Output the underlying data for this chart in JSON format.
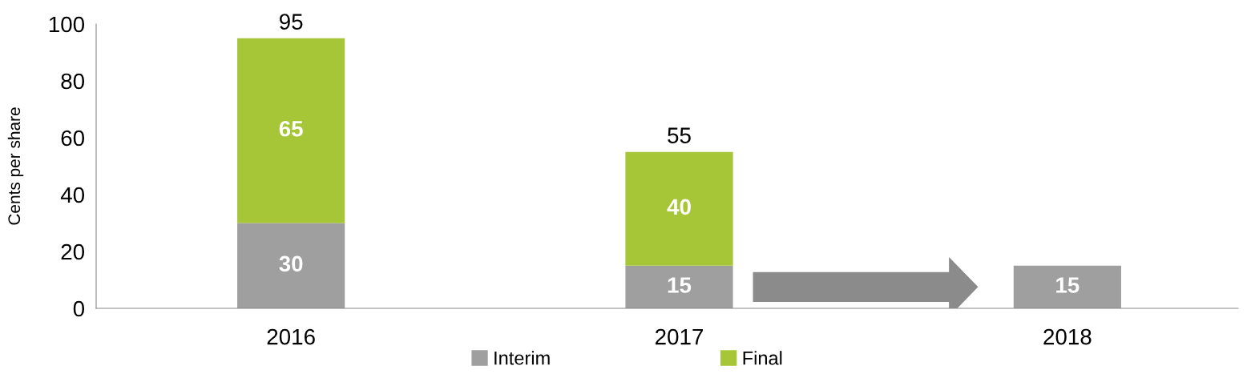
{
  "chart_data": {
    "type": "bar",
    "stacked": true,
    "ylabel": "Cents per share",
    "categories": [
      "2016",
      "2017",
      "2018"
    ],
    "series": [
      {
        "name": "Interim",
        "color": "#a09fa0",
        "values": [
          30,
          15,
          15
        ]
      },
      {
        "name": "Final",
        "color": "#a6c637",
        "values": [
          65,
          40,
          null
        ]
      }
    ],
    "totals": [
      "95",
      "55",
      null
    ],
    "data_labels": true,
    "ylim": [
      0,
      100
    ],
    "yticks": [
      0,
      20,
      40,
      60,
      80,
      100
    ],
    "grid": false,
    "legend": "bottom"
  }
}
